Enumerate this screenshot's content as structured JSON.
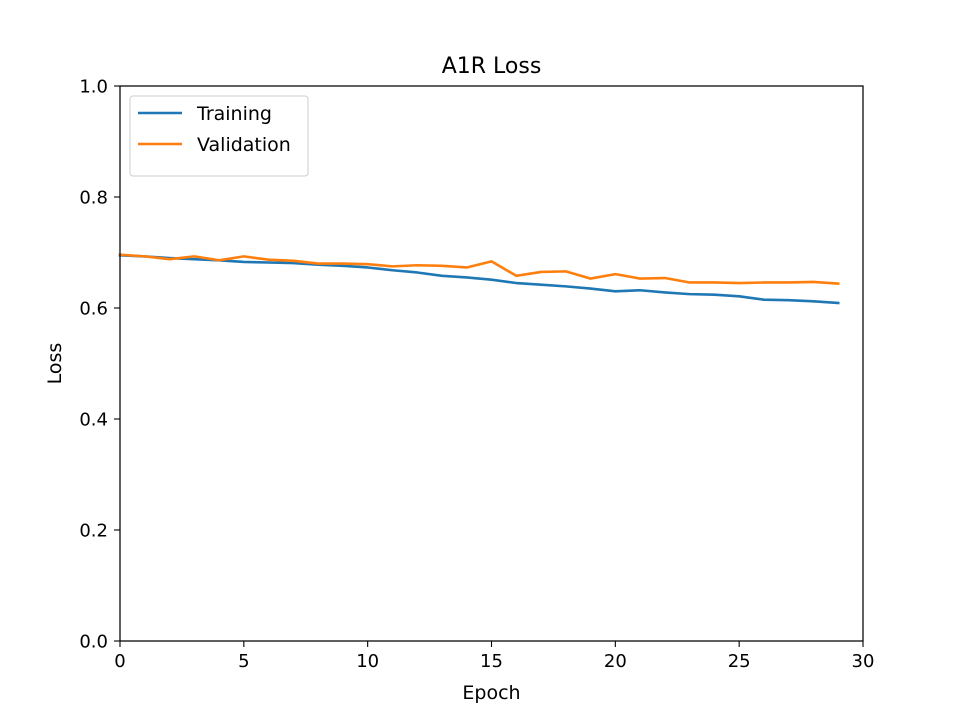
{
  "chart_data": {
    "type": "line",
    "title": "A1R Loss",
    "xlabel": "Epoch",
    "ylabel": "Loss",
    "xlim": [
      0,
      30
    ],
    "ylim": [
      0,
      1.0
    ],
    "xticks": [
      0,
      5,
      10,
      15,
      20,
      25,
      30
    ],
    "xtick_labels": [
      "0",
      "5",
      "10",
      "15",
      "20",
      "25",
      "30"
    ],
    "yticks": [
      0,
      0.2,
      0.4,
      0.6,
      0.8,
      1.0
    ],
    "ytick_labels": [
      "0.0",
      "0.2",
      "0.4",
      "0.6",
      "0.8",
      "1.0"
    ],
    "grid": false,
    "legend_position": "upper-left",
    "x": [
      0,
      1,
      2,
      3,
      4,
      5,
      6,
      7,
      8,
      9,
      10,
      11,
      12,
      13,
      14,
      15,
      16,
      17,
      18,
      19,
      20,
      21,
      22,
      23,
      24,
      25,
      26,
      27,
      28,
      29
    ],
    "series": [
      {
        "name": "Training",
        "color": "#1f77b4",
        "values": [
          0.695,
          0.693,
          0.69,
          0.688,
          0.686,
          0.683,
          0.682,
          0.681,
          0.678,
          0.676,
          0.673,
          0.668,
          0.664,
          0.658,
          0.655,
          0.651,
          0.645,
          0.642,
          0.639,
          0.635,
          0.63,
          0.632,
          0.628,
          0.625,
          0.624,
          0.621,
          0.615,
          0.614,
          0.612,
          0.609
        ]
      },
      {
        "name": "Validation",
        "color": "#ff7f0e",
        "values": [
          0.696,
          0.693,
          0.688,
          0.693,
          0.686,
          0.693,
          0.687,
          0.685,
          0.68,
          0.68,
          0.679,
          0.675,
          0.677,
          0.676,
          0.673,
          0.684,
          0.658,
          0.665,
          0.666,
          0.653,
          0.661,
          0.653,
          0.654,
          0.646,
          0.646,
          0.645,
          0.646,
          0.646,
          0.647,
          0.644
        ]
      }
    ]
  }
}
